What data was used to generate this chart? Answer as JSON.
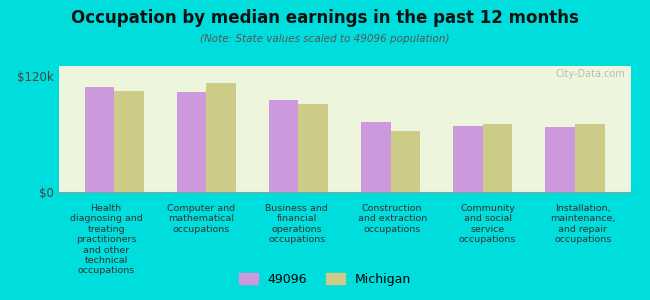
{
  "title": "Occupation by median earnings in the past 12 months",
  "subtitle": "(Note: State values scaled to 49096 population)",
  "categories": [
    "Health\ndiagnosing and\ntreating\npractitioners\nand other\ntechnical\noccupations",
    "Computer and\nmathematical\noccupations",
    "Business and\nfinancial\noperations\noccupations",
    "Construction\nand extraction\noccupations",
    "Community\nand social\nservice\noccupations",
    "Installation,\nmaintenance,\nand repair\noccupations"
  ],
  "values_49096": [
    108000,
    103000,
    95000,
    72000,
    68000,
    67000
  ],
  "values_michigan": [
    104000,
    112000,
    91000,
    63000,
    70000,
    70000
  ],
  "color_49096": "#cc99dd",
  "color_michigan": "#cccc88",
  "ylim": [
    0,
    130000
  ],
  "ytick_labels": [
    "$0",
    "$120k"
  ],
  "background_color": "#00dddd",
  "plot_bg_color": "#eef5dd",
  "legend_label_49096": "49096",
  "legend_label_michigan": "Michigan",
  "watermark": "City-Data.com"
}
